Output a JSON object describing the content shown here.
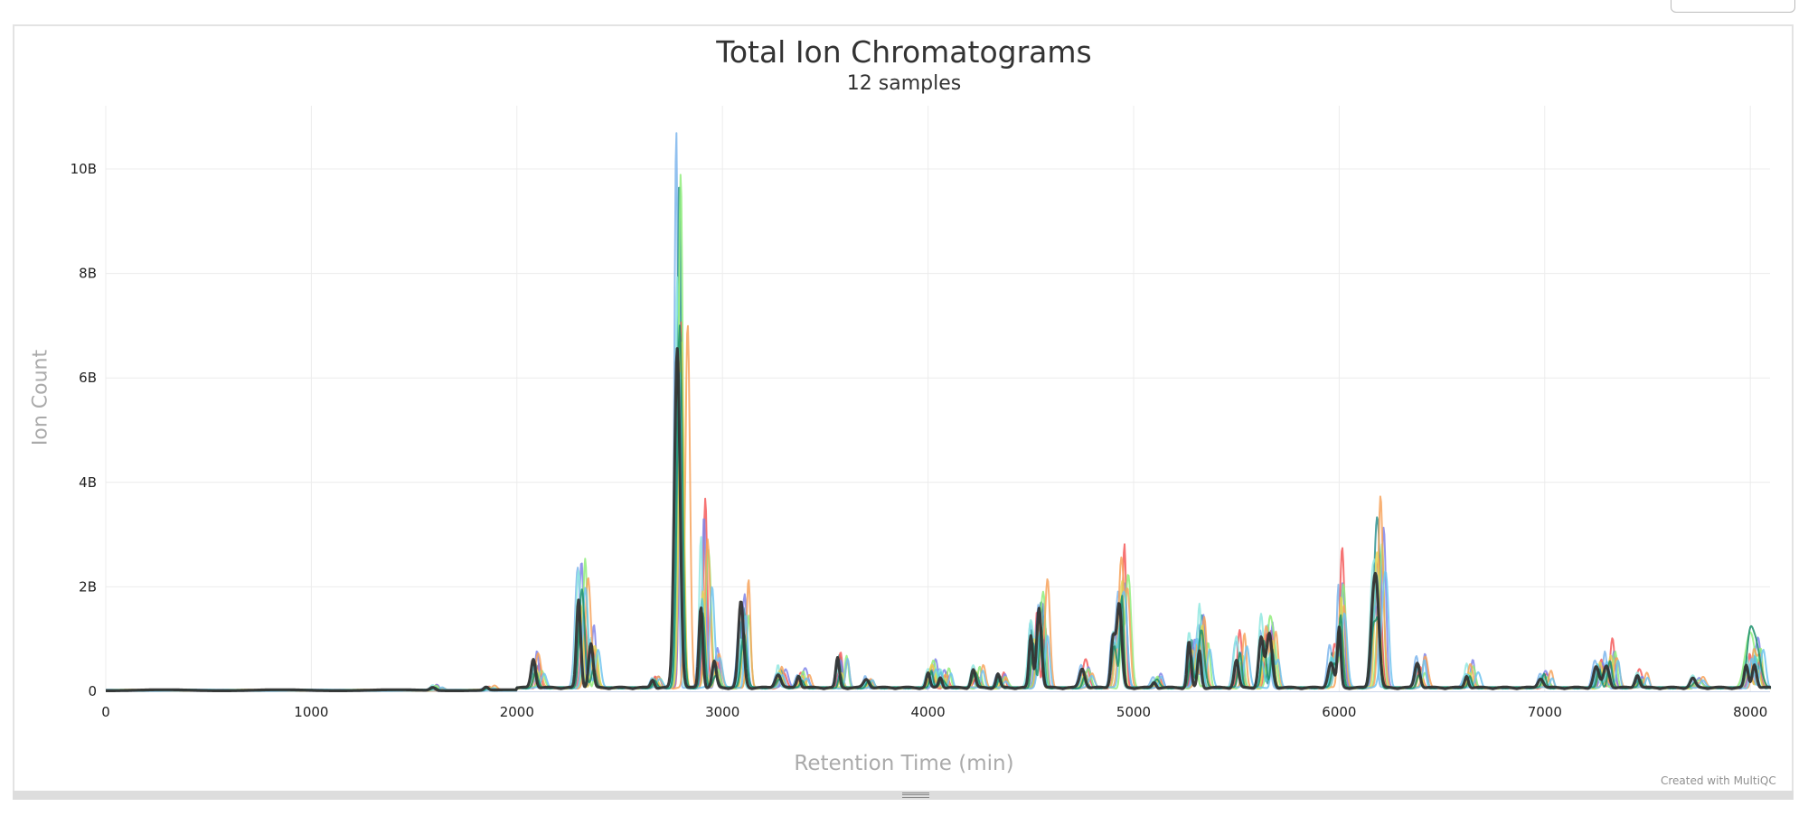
{
  "chart_data": {
    "type": "line",
    "title": "Total Ion Chromatograms",
    "subtitle": "12 samples",
    "xlabel": "Retention Time (min)",
    "ylabel": "Ion Count",
    "xlim": [
      0,
      8100
    ],
    "ylim": [
      0,
      11000000000
    ],
    "x_ticks": [
      0,
      1000,
      2000,
      3000,
      4000,
      5000,
      6000,
      7000,
      8000
    ],
    "x_tick_labels": [
      "0",
      "1000",
      "2000",
      "3000",
      "4000",
      "5000",
      "6000",
      "7000",
      "8000"
    ],
    "y_ticks": [
      0,
      2000000000,
      4000000000,
      6000000000,
      8000000000,
      10000000000
    ],
    "y_tick_labels": [
      "0",
      "2B",
      "4B",
      "6B",
      "8B",
      "10B"
    ],
    "grid": true,
    "legend": "none",
    "reference_peaks_rt_and_height_B": [
      [
        1590,
        0.06
      ],
      [
        1850,
        0.05
      ],
      [
        2080,
        0.4
      ],
      [
        2300,
        1.7
      ],
      [
        2360,
        0.7
      ],
      [
        2660,
        0.2
      ],
      [
        2780,
        6.5
      ],
      [
        2895,
        2.0
      ],
      [
        2960,
        0.45
      ],
      [
        3090,
        1.25
      ],
      [
        3270,
        0.28
      ],
      [
        3370,
        0.22
      ],
      [
        3560,
        0.45
      ],
      [
        3700,
        0.15
      ],
      [
        4000,
        0.35
      ],
      [
        4060,
        0.25
      ],
      [
        4220,
        0.25
      ],
      [
        4340,
        0.2
      ],
      [
        4500,
        1.1
      ],
      [
        4540,
        1.2
      ],
      [
        4750,
        0.3
      ],
      [
        4900,
        0.95
      ],
      [
        4930,
        1.65
      ],
      [
        5100,
        0.15
      ],
      [
        5270,
        0.7
      ],
      [
        5320,
        1.1
      ],
      [
        5500,
        0.7
      ],
      [
        5620,
        0.85
      ],
      [
        5660,
        0.8
      ],
      [
        5960,
        0.6
      ],
      [
        6000,
        1.5
      ],
      [
        6160,
        1.2
      ],
      [
        6180,
        1.9
      ],
      [
        6380,
        0.4
      ],
      [
        6620,
        0.3
      ],
      [
        6980,
        0.22
      ],
      [
        7250,
        0.4
      ],
      [
        7300,
        0.55
      ],
      [
        7450,
        0.2
      ],
      [
        7720,
        0.15
      ],
      [
        7980,
        0.45
      ],
      [
        8020,
        0.55
      ]
    ],
    "series": [
      {
        "color": "#7cb5ec",
        "shift": -5,
        "scale": 1.1,
        "max_peak": [
          2775,
          10.7
        ]
      },
      {
        "color": "#2b908f",
        "shift": 10,
        "scale": 1.0,
        "max_peak": [
          2790,
          9.8
        ]
      },
      {
        "color": "#f45b5b",
        "shift": 20,
        "scale": 1.35,
        "max_peak": [
          2800,
          7.0
        ]
      },
      {
        "color": "#8085e9",
        "shift": 25,
        "scale": 1.3,
        "max_peak": [
          2910,
          3.3
        ]
      },
      {
        "color": "#91e8e1",
        "shift": 0,
        "scale": 1.2,
        "max_peak": [
          2300,
          2.25
        ]
      },
      {
        "color": "#90ed7d",
        "shift": 30,
        "scale": 1.15,
        "max_peak": [
          8000,
          1.05
        ]
      },
      {
        "color": "#f7a35c",
        "shift": 35,
        "scale": 1.3,
        "max_peak": [
          4940,
          2.45
        ]
      },
      {
        "color": "#e4d354",
        "shift": 15,
        "scale": 0.9,
        "max_peak": [
          2310,
          1.6
        ]
      },
      {
        "color": "#6fc3f0",
        "shift": 40,
        "scale": 1.0,
        "max_peak": [
          2790,
          6.1
        ]
      },
      {
        "color": "#5bcad9",
        "shift": 5,
        "scale": 0.95,
        "max_peak": [
          3560,
          0.55
        ]
      },
      {
        "color": "#1a8f6a",
        "shift": 12,
        "scale": 0.85,
        "max_peak": [
          8020,
          0.95
        ]
      },
      {
        "color": "#333333",
        "shift": 0,
        "scale": 1.0,
        "max_peak": [
          2780,
          6.5
        ]
      }
    ]
  },
  "credits": "Created with MultiQC"
}
